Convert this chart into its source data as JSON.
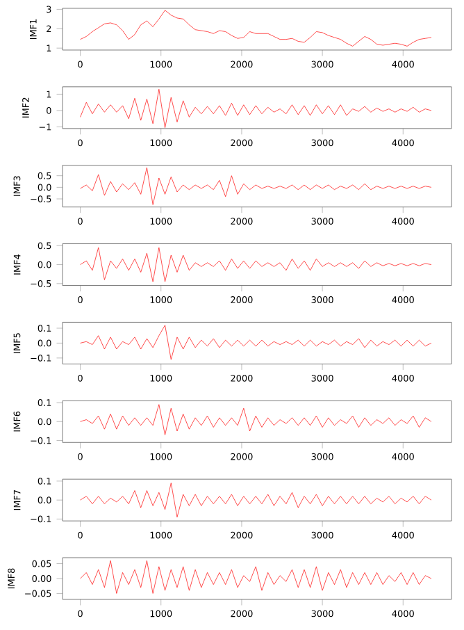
{
  "chart_data": [
    {
      "type": "line",
      "ylabel": "IMF1",
      "color": "#ff0000",
      "xlim": [
        -220,
        4600
      ],
      "ylim": [
        0.9,
        3.05
      ],
      "xticks": [
        0,
        1000,
        2000,
        3000,
        4000
      ],
      "yticks": [
        1,
        2,
        3
      ],
      "x": [
        0,
        75,
        150,
        225,
        300,
        375,
        450,
        525,
        600,
        675,
        750,
        825,
        900,
        975,
        1050,
        1125,
        1200,
        1275,
        1350,
        1425,
        1500,
        1575,
        1650,
        1725,
        1800,
        1875,
        1950,
        2025,
        2100,
        2175,
        2250,
        2325,
        2400,
        2475,
        2550,
        2625,
        2700,
        2775,
        2850,
        2925,
        3000,
        3075,
        3150,
        3225,
        3300,
        3375,
        3450,
        3525,
        3600,
        3675,
        3750,
        3825,
        3900,
        3975,
        4050,
        4125,
        4200,
        4275,
        4350
      ],
      "values": [
        1.45,
        1.6,
        1.85,
        2.05,
        2.25,
        2.3,
        2.2,
        1.9,
        1.45,
        1.7,
        2.2,
        2.4,
        2.1,
        2.5,
        2.95,
        2.7,
        2.55,
        2.5,
        2.2,
        1.95,
        1.9,
        1.85,
        1.75,
        1.9,
        1.85,
        1.65,
        1.5,
        1.55,
        1.85,
        1.75,
        1.75,
        1.75,
        1.6,
        1.45,
        1.45,
        1.5,
        1.35,
        1.3,
        1.55,
        1.85,
        1.8,
        1.65,
        1.55,
        1.45,
        1.25,
        1.1,
        1.35,
        1.6,
        1.45,
        1.2,
        1.15,
        1.2,
        1.25,
        1.2,
        1.1,
        1.3,
        1.45,
        1.5,
        1.55
      ]
    },
    {
      "type": "line",
      "ylabel": "IMF2",
      "color": "#ff0000",
      "xlim": [
        -220,
        4600
      ],
      "ylim": [
        -1.1,
        1.45
      ],
      "xticks": [
        0,
        1000,
        2000,
        3000,
        4000
      ],
      "yticks": [
        {
          "value": -1,
          "label": "−1"
        },
        0,
        1
      ],
      "x": [
        0,
        75,
        150,
        225,
        300,
        375,
        450,
        525,
        600,
        675,
        750,
        825,
        900,
        975,
        1050,
        1125,
        1200,
        1275,
        1350,
        1425,
        1500,
        1575,
        1650,
        1725,
        1800,
        1875,
        1950,
        2025,
        2100,
        2175,
        2250,
        2325,
        2400,
        2475,
        2550,
        2625,
        2700,
        2775,
        2850,
        2925,
        3000,
        3075,
        3150,
        3225,
        3300,
        3375,
        3450,
        3525,
        3600,
        3675,
        3750,
        3825,
        3900,
        3975,
        4050,
        4125,
        4200,
        4275,
        4350
      ],
      "values": [
        -0.4,
        0.5,
        -0.2,
        0.4,
        -0.1,
        0.35,
        -0.1,
        0.3,
        -0.5,
        0.75,
        -0.6,
        0.7,
        -0.8,
        1.3,
        -1.05,
        0.8,
        -0.7,
        0.6,
        -0.4,
        0.2,
        -0.2,
        0.25,
        -0.2,
        0.3,
        -0.3,
        0.45,
        -0.3,
        0.35,
        -0.25,
        0.3,
        -0.2,
        0.2,
        -0.1,
        0.1,
        -0.2,
        0.35,
        -0.25,
        0.3,
        -0.3,
        0.35,
        -0.2,
        0.3,
        -0.25,
        0.35,
        -0.3,
        0.1,
        -0.05,
        0.25,
        -0.1,
        0.15,
        -0.05,
        0.1,
        -0.1,
        0.1,
        -0.05,
        0.2,
        -0.1,
        0.1,
        0.0
      ]
    },
    {
      "type": "line",
      "ylabel": "IMF3",
      "color": "#ff0000",
      "xlim": [
        -220,
        4600
      ],
      "ylim": [
        -0.85,
        0.95
      ],
      "xticks": [
        0,
        1000,
        2000,
        3000,
        4000
      ],
      "yticks": [
        {
          "value": -0.5,
          "label": "−0.5"
        },
        {
          "value": 0,
          "label": "0.0"
        },
        0.5
      ],
      "x": [
        0,
        75,
        150,
        225,
        300,
        375,
        450,
        525,
        600,
        675,
        750,
        825,
        900,
        975,
        1050,
        1125,
        1200,
        1275,
        1350,
        1425,
        1500,
        1575,
        1650,
        1725,
        1800,
        1875,
        1950,
        2025,
        2100,
        2175,
        2250,
        2325,
        2400,
        2475,
        2550,
        2625,
        2700,
        2775,
        2850,
        2925,
        3000,
        3075,
        3150,
        3225,
        3300,
        3375,
        3450,
        3525,
        3600,
        3675,
        3750,
        3825,
        3900,
        3975,
        4050,
        4125,
        4200,
        4275,
        4350
      ],
      "values": [
        -0.05,
        0.1,
        -0.15,
        0.55,
        -0.35,
        0.25,
        -0.2,
        0.15,
        -0.1,
        0.2,
        -0.3,
        0.85,
        -0.75,
        0.4,
        -0.3,
        0.45,
        -0.2,
        0.1,
        -0.1,
        0.1,
        -0.05,
        0.1,
        -0.1,
        0.3,
        -0.4,
        0.5,
        -0.3,
        0.15,
        -0.1,
        0.1,
        -0.05,
        0.05,
        -0.05,
        0.05,
        -0.05,
        0.1,
        -0.1,
        0.1,
        -0.1,
        0.1,
        -0.05,
        0.1,
        -0.1,
        0.05,
        -0.05,
        0.1,
        -0.1,
        0.15,
        -0.1,
        0.05,
        -0.05,
        0.05,
        -0.05,
        0.05,
        -0.05,
        0.05,
        -0.05,
        0.05,
        0.0
      ]
    },
    {
      "type": "line",
      "ylabel": "IMF4",
      "color": "#ff0000",
      "xlim": [
        -220,
        4600
      ],
      "ylim": [
        -0.55,
        0.55
      ],
      "xticks": [
        0,
        1000,
        2000,
        3000,
        4000
      ],
      "yticks": [
        {
          "value": -0.5,
          "label": "−0.5"
        },
        {
          "value": 0,
          "label": "0.0"
        },
        0.5
      ],
      "x": [
        0,
        75,
        150,
        225,
        300,
        375,
        450,
        525,
        600,
        675,
        750,
        825,
        900,
        975,
        1050,
        1125,
        1200,
        1275,
        1350,
        1425,
        1500,
        1575,
        1650,
        1725,
        1800,
        1875,
        1950,
        2025,
        2100,
        2175,
        2250,
        2325,
        2400,
        2475,
        2550,
        2625,
        2700,
        2775,
        2850,
        2925,
        3000,
        3075,
        3150,
        3225,
        3300,
        3375,
        3450,
        3525,
        3600,
        3675,
        3750,
        3825,
        3900,
        3975,
        4050,
        4125,
        4200,
        4275,
        4350
      ],
      "values": [
        0,
        0.1,
        -0.15,
        0.45,
        -0.4,
        0.1,
        -0.1,
        0.15,
        -0.15,
        0.15,
        -0.2,
        0.3,
        -0.45,
        0.45,
        -0.45,
        0.25,
        -0.2,
        0.25,
        -0.15,
        0.05,
        -0.05,
        0.05,
        -0.05,
        0.1,
        -0.15,
        0.15,
        -0.1,
        0.1,
        -0.1,
        0.1,
        -0.05,
        0.05,
        -0.05,
        0.05,
        -0.15,
        0.15,
        -0.1,
        0.1,
        -0.15,
        0.15,
        -0.05,
        0.05,
        -0.05,
        0.05,
        -0.05,
        0.05,
        -0.1,
        0.1,
        -0.05,
        0.05,
        -0.03,
        0.03,
        -0.03,
        0.03,
        -0.03,
        0.03,
        -0.03,
        0.03,
        0.0
      ]
    },
    {
      "type": "line",
      "ylabel": "IMF5",
      "color": "#ff0000",
      "xlim": [
        -220,
        4600
      ],
      "ylim": [
        -0.14,
        0.14
      ],
      "xticks": [
        0,
        1000,
        2000,
        3000,
        4000
      ],
      "yticks": [
        {
          "value": -0.1,
          "label": "−0.1"
        },
        {
          "value": 0,
          "label": "0.0"
        },
        0.1
      ],
      "x": [
        0,
        75,
        150,
        225,
        300,
        375,
        450,
        525,
        600,
        675,
        750,
        825,
        900,
        975,
        1050,
        1125,
        1200,
        1275,
        1350,
        1425,
        1500,
        1575,
        1650,
        1725,
        1800,
        1875,
        1950,
        2025,
        2100,
        2175,
        2250,
        2325,
        2400,
        2475,
        2550,
        2625,
        2700,
        2775,
        2850,
        2925,
        3000,
        3075,
        3150,
        3225,
        3300,
        3375,
        3450,
        3525,
        3600,
        3675,
        3750,
        3825,
        3900,
        3975,
        4050,
        4125,
        4200,
        4275,
        4350
      ],
      "values": [
        0,
        0.01,
        -0.01,
        0.05,
        -0.04,
        0.04,
        -0.04,
        0.01,
        -0.01,
        0.04,
        -0.04,
        0.03,
        -0.03,
        0.05,
        0.12,
        -0.11,
        0.04,
        -0.04,
        0.04,
        -0.03,
        0.02,
        -0.02,
        0.03,
        -0.03,
        0.02,
        -0.02,
        0.02,
        -0.02,
        0.02,
        -0.02,
        0.02,
        -0.02,
        0.01,
        -0.01,
        0.01,
        -0.01,
        0.02,
        -0.02,
        0.02,
        -0.02,
        0.01,
        -0.01,
        0.02,
        -0.02,
        0.01,
        -0.01,
        0.03,
        -0.03,
        0.02,
        -0.02,
        0.01,
        -0.01,
        0.02,
        -0.02,
        0.02,
        -0.02,
        0.02,
        -0.02,
        0.0
      ]
    },
    {
      "type": "line",
      "ylabel": "IMF6",
      "color": "#ff0000",
      "xlim": [
        -220,
        4600
      ],
      "ylim": [
        -0.11,
        0.11
      ],
      "xticks": [
        0,
        1000,
        2000,
        3000,
        4000
      ],
      "yticks": [
        {
          "value": -0.1,
          "label": "−0.1"
        },
        {
          "value": 0,
          "label": "0.0"
        },
        0.1
      ],
      "x": [
        0,
        75,
        150,
        225,
        300,
        375,
        450,
        525,
        600,
        675,
        750,
        825,
        900,
        975,
        1050,
        1125,
        1200,
        1275,
        1350,
        1425,
        1500,
        1575,
        1650,
        1725,
        1800,
        1875,
        1950,
        2025,
        2100,
        2175,
        2250,
        2325,
        2400,
        2475,
        2550,
        2625,
        2700,
        2775,
        2850,
        2925,
        3000,
        3075,
        3150,
        3225,
        3300,
        3375,
        3450,
        3525,
        3600,
        3675,
        3750,
        3825,
        3900,
        3975,
        4050,
        4125,
        4200,
        4275,
        4350
      ],
      "values": [
        0,
        0.01,
        -0.01,
        0.03,
        -0.04,
        0.04,
        -0.04,
        0.03,
        -0.02,
        0.02,
        -0.02,
        0.02,
        -0.02,
        0.09,
        -0.07,
        0.07,
        -0.05,
        0.04,
        -0.04,
        0.02,
        -0.02,
        0.03,
        -0.03,
        0.02,
        -0.02,
        0.02,
        -0.02,
        0.07,
        -0.05,
        0.03,
        -0.03,
        0.02,
        -0.02,
        0.01,
        -0.01,
        0.02,
        -0.02,
        0.02,
        -0.02,
        0.03,
        -0.03,
        0.02,
        -0.02,
        0.01,
        -0.01,
        0.03,
        -0.03,
        0.02,
        -0.02,
        0.01,
        -0.01,
        0.02,
        -0.02,
        0.01,
        -0.01,
        0.03,
        -0.03,
        0.02,
        0.0
      ]
    },
    {
      "type": "line",
      "ylabel": "IMF7",
      "color": "#ff0000",
      "xlim": [
        -220,
        4600
      ],
      "ylim": [
        -0.11,
        0.11
      ],
      "xticks": [
        0,
        1000,
        2000,
        3000,
        4000
      ],
      "yticks": [
        {
          "value": -0.1,
          "label": "−0.1"
        },
        {
          "value": 0,
          "label": "0.0"
        },
        0.1
      ],
      "x": [
        0,
        75,
        150,
        225,
        300,
        375,
        450,
        525,
        600,
        675,
        750,
        825,
        900,
        975,
        1050,
        1125,
        1200,
        1275,
        1350,
        1425,
        1500,
        1575,
        1650,
        1725,
        1800,
        1875,
        1950,
        2025,
        2100,
        2175,
        2250,
        2325,
        2400,
        2475,
        2550,
        2625,
        2700,
        2775,
        2850,
        2925,
        3000,
        3075,
        3150,
        3225,
        3300,
        3375,
        3450,
        3525,
        3600,
        3675,
        3750,
        3825,
        3900,
        3975,
        4050,
        4125,
        4200,
        4275,
        4350
      ],
      "values": [
        0,
        0.02,
        -0.02,
        0.02,
        -0.02,
        0.01,
        -0.01,
        0.02,
        -0.02,
        0.05,
        -0.04,
        0.05,
        -0.03,
        0.04,
        -0.05,
        0.09,
        -0.09,
        0.03,
        -0.03,
        0.03,
        -0.03,
        0.02,
        -0.02,
        0.02,
        -0.02,
        0.03,
        -0.03,
        0.02,
        -0.02,
        0.02,
        -0.02,
        0.03,
        -0.03,
        0.02,
        -0.02,
        0.04,
        -0.04,
        0.02,
        -0.02,
        0.03,
        -0.03,
        0.02,
        -0.02,
        0.02,
        -0.02,
        0.02,
        -0.02,
        0.02,
        -0.02,
        0.01,
        -0.01,
        0.02,
        -0.02,
        0.01,
        -0.01,
        0.02,
        -0.02,
        0.02,
        0.0
      ]
    },
    {
      "type": "line",
      "ylabel": "IMF8",
      "color": "#ff0000",
      "xlim": [
        -220,
        4600
      ],
      "ylim": [
        -0.07,
        0.07
      ],
      "xticks": [
        0,
        1000,
        2000,
        3000,
        4000
      ],
      "yticks": [
        {
          "value": -0.05,
          "label": "−0.05"
        },
        {
          "value": 0,
          "label": "0.00"
        },
        0.05
      ],
      "x": [
        0,
        75,
        150,
        225,
        300,
        375,
        450,
        525,
        600,
        675,
        750,
        825,
        900,
        975,
        1050,
        1125,
        1200,
        1275,
        1350,
        1425,
        1500,
        1575,
        1650,
        1725,
        1800,
        1875,
        1950,
        2025,
        2100,
        2175,
        2250,
        2325,
        2400,
        2475,
        2550,
        2625,
        2700,
        2775,
        2850,
        2925,
        3000,
        3075,
        3150,
        3225,
        3300,
        3375,
        3450,
        3525,
        3600,
        3675,
        3750,
        3825,
        3900,
        3975,
        4050,
        4125,
        4200,
        4275,
        4350
      ],
      "values": [
        0,
        0.02,
        -0.02,
        0.03,
        -0.03,
        0.06,
        -0.05,
        0.02,
        -0.02,
        0.03,
        -0.03,
        0.06,
        -0.05,
        0.04,
        -0.04,
        0.03,
        -0.03,
        0.04,
        -0.04,
        0.03,
        -0.03,
        0.02,
        -0.02,
        0.02,
        -0.02,
        0.03,
        -0.03,
        0.01,
        -0.01,
        0.04,
        -0.04,
        0.02,
        -0.02,
        0.01,
        -0.01,
        0.03,
        -0.03,
        0.03,
        -0.03,
        0.04,
        -0.04,
        0.02,
        -0.02,
        0.03,
        -0.03,
        0.02,
        -0.02,
        0.02,
        -0.02,
        0.02,
        -0.02,
        0.01,
        -0.01,
        0.02,
        -0.02,
        0.02,
        -0.02,
        0.01,
        0.0
      ]
    }
  ]
}
